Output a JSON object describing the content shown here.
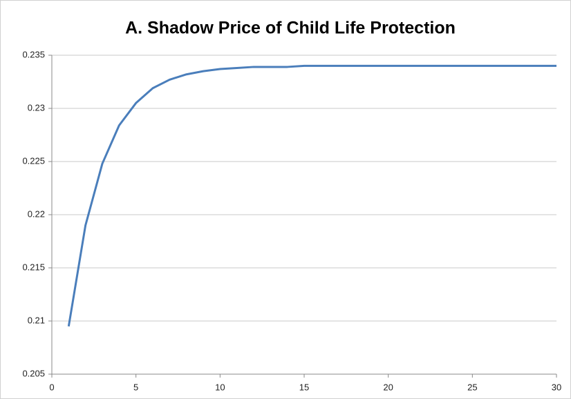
{
  "chart_data": {
    "type": "line",
    "title": "A. Shadow Price of Child Life Protection",
    "x": [
      1,
      2,
      3,
      4,
      5,
      6,
      7,
      8,
      9,
      10,
      11,
      12,
      13,
      14,
      15,
      16,
      17,
      18,
      19,
      20,
      21,
      22,
      23,
      24,
      25,
      26,
      27,
      28,
      29,
      30
    ],
    "series": [
      {
        "name": "Shadow price",
        "color": "#4a7ebb",
        "values": [
          0.2095,
          0.219,
          0.2248,
          0.2284,
          0.2305,
          0.2319,
          0.2327,
          0.2332,
          0.2335,
          0.2337,
          0.2338,
          0.2339,
          0.2339,
          0.2339,
          0.234,
          0.234,
          0.234,
          0.234,
          0.234,
          0.234,
          0.234,
          0.234,
          0.234,
          0.234,
          0.234,
          0.234,
          0.234,
          0.234,
          0.234,
          0.234
        ]
      }
    ],
    "xlim": [
      0,
      30
    ],
    "xticks": [
      0,
      5,
      10,
      15,
      20,
      25,
      30
    ],
    "ylim": [
      0.205,
      0.235
    ],
    "yticks": [
      0.205,
      0.21,
      0.215,
      0.22,
      0.225,
      0.23,
      0.235
    ],
    "grid": true
  }
}
